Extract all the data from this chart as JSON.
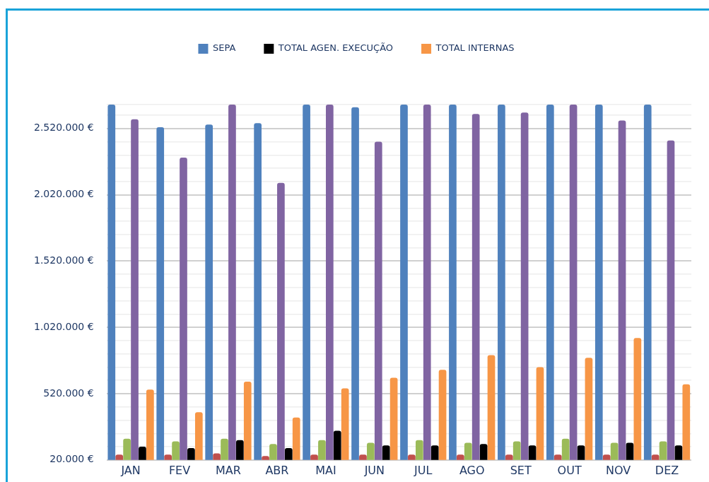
{
  "chart_data": {
    "type": "bar",
    "categories": [
      "JAN",
      "FEV",
      "MAR",
      "ABR",
      "MAI",
      "JUN",
      "JUL",
      "AGO",
      "SET",
      "OUT",
      "NOV",
      "DEZ"
    ],
    "series": [
      {
        "name": "SEPA",
        "color": "#4f81bd",
        "values": [
          2700000,
          2530000,
          2550000,
          2560000,
          2700000,
          2680000,
          2700000,
          2700000,
          2700000,
          2700000,
          2700000,
          2700000
        ]
      },
      {
        "color": "#c0504d",
        "values": [
          60000,
          60000,
          70000,
          50000,
          60000,
          60000,
          60000,
          60000,
          60000,
          60000,
          60000,
          60000
        ]
      },
      {
        "color": "#9bbb59",
        "values": [
          180000,
          160000,
          180000,
          140000,
          170000,
          150000,
          170000,
          150000,
          160000,
          180000,
          150000,
          160000
        ]
      },
      {
        "color": "#8064a2",
        "values": [
          2590000,
          2300000,
          2700000,
          2110000,
          2700000,
          2420000,
          2700000,
          2630000,
          2640000,
          2700000,
          2580000,
          2430000
        ]
      },
      {
        "name": "TOTAL AGEN. EXECUÇÃO",
        "color": "#000000",
        "values": [
          120000,
          110000,
          170000,
          110000,
          240000,
          130000,
          130000,
          140000,
          130000,
          130000,
          150000,
          130000
        ]
      },
      {
        "name": "TOTAL INTERNAS",
        "color": "#f79646",
        "values": [
          550000,
          380000,
          610000,
          340000,
          560000,
          640000,
          700000,
          810000,
          720000,
          790000,
          940000,
          590000
        ]
      }
    ],
    "ylim": [
      20000,
      2700000
    ],
    "yticks": [
      {
        "value": 20000,
        "label": "20.000 €"
      },
      {
        "value": 120000,
        "label": null
      },
      {
        "value": 220000,
        "label": null
      },
      {
        "value": 320000,
        "label": null
      },
      {
        "value": 420000,
        "label": null
      },
      {
        "value": 520000,
        "label": "520.000 €"
      },
      {
        "value": 620000,
        "label": null
      },
      {
        "value": 720000,
        "label": null
      },
      {
        "value": 820000,
        "label": null
      },
      {
        "value": 920000,
        "label": null
      },
      {
        "value": 1020000,
        "label": "1.020.000 €"
      },
      {
        "value": 1120000,
        "label": null
      },
      {
        "value": 1220000,
        "label": null
      },
      {
        "value": 1320000,
        "label": null
      },
      {
        "value": 1420000,
        "label": null
      },
      {
        "value": 1520000,
        "label": "1.520.000 €"
      },
      {
        "value": 1620000,
        "label": null
      },
      {
        "value": 1720000,
        "label": null
      },
      {
        "value": 1820000,
        "label": null
      },
      {
        "value": 1920000,
        "label": null
      },
      {
        "value": 2020000,
        "label": "2.020.000 €"
      },
      {
        "value": 2120000,
        "label": null
      },
      {
        "value": 2220000,
        "label": null
      },
      {
        "value": 2320000,
        "label": null
      },
      {
        "value": 2420000,
        "label": null
      },
      {
        "value": 2520000,
        "label": "2.520.000 €"
      },
      {
        "value": 2620000,
        "label": null
      },
      {
        "value": 2700000,
        "label": null
      }
    ],
    "grid": "y",
    "legend": "top"
  }
}
